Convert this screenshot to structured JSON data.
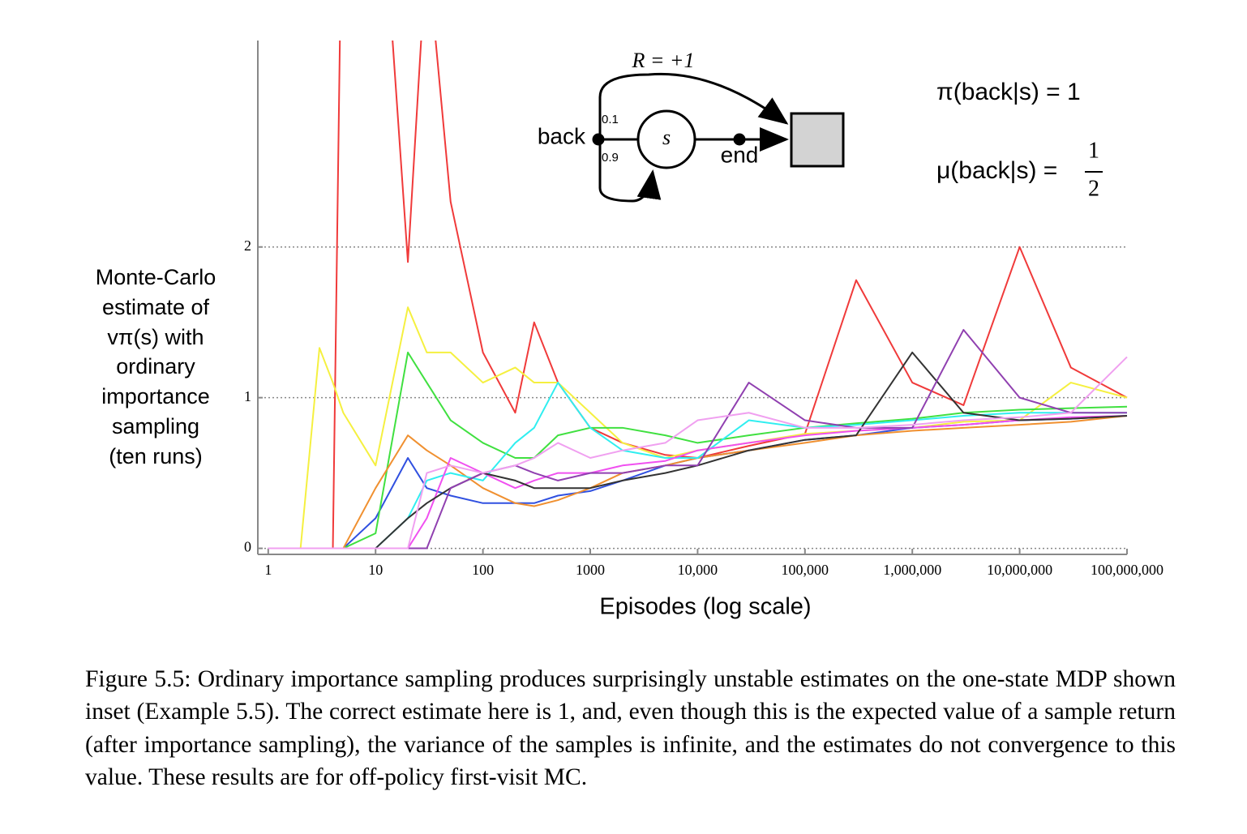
{
  "chart_data": {
    "type": "line",
    "xscale": "log",
    "grid": true,
    "ylabel": [
      "Monte-Carlo",
      "estimate of",
      "vπ(s) with",
      "ordinary",
      "importance",
      "sampling",
      "(ten runs)"
    ],
    "xlabel": "Episodes (log scale)",
    "xlim": [
      0.8,
      100000000
    ],
    "ylim": [
      -0.04,
      3.37
    ],
    "xticks": [
      1,
      10,
      100,
      1000,
      {
        "value": 10000,
        "label": "10,000"
      },
      {
        "value": 100000,
        "label": "100,000"
      },
      {
        "value": 1000000,
        "label": "1,000,000"
      },
      {
        "value": 10000000,
        "label": "10,000,000"
      },
      {
        "value": 100000000,
        "label": "100,000,000"
      }
    ],
    "yticks": [
      0,
      1,
      2
    ],
    "x": [
      1,
      2,
      3,
      4,
      5,
      10,
      20,
      30,
      50,
      100,
      200,
      300,
      500,
      1000,
      2000,
      5000,
      10000,
      30000,
      100000,
      300000,
      1000000,
      3000000,
      10000000,
      30000000,
      100000000
    ],
    "series": [
      {
        "color": "#f03a3a",
        "values": [
          0,
          0,
          0,
          0,
          5,
          5,
          1.9,
          4,
          2.3,
          1.3,
          0.9,
          1.5,
          1.1,
          0.8,
          0.7,
          0.62,
          0.6,
          0.68,
          0.76,
          1.78,
          1.1,
          0.95,
          2.0,
          1.2,
          1.0
        ]
      },
      {
        "color": "#f5f040",
        "values": [
          0,
          0,
          1.33,
          1.1,
          0.9,
          0.55,
          1.6,
          1.3,
          1.3,
          1.1,
          1.2,
          1.1,
          1.1,
          0.9,
          0.7,
          0.6,
          0.65,
          0.7,
          0.76,
          0.78,
          0.8,
          0.84,
          0.85,
          1.1,
          1.0
        ]
      },
      {
        "color": "#3050e0",
        "values": [
          0,
          0,
          0,
          0,
          0,
          0.2,
          0.6,
          0.4,
          0.35,
          0.3,
          0.3,
          0.3,
          0.35,
          0.38,
          0.45,
          0.55,
          0.6,
          0.65,
          0.72,
          0.75,
          0.8,
          0.82,
          0.85,
          0.86,
          0.88
        ]
      },
      {
        "color": "#40e040",
        "values": [
          0,
          0,
          0,
          0,
          0,
          0.1,
          1.3,
          1.1,
          0.85,
          0.7,
          0.6,
          0.6,
          0.75,
          0.8,
          0.8,
          0.75,
          0.7,
          0.75,
          0.8,
          0.83,
          0.86,
          0.9,
          0.92,
          0.93,
          0.94
        ]
      },
      {
        "color": "#f09030",
        "values": [
          0,
          0,
          0,
          0,
          0,
          0.4,
          0.75,
          0.65,
          0.55,
          0.4,
          0.3,
          0.28,
          0.32,
          0.4,
          0.5,
          0.55,
          0.6,
          0.65,
          0.7,
          0.75,
          0.78,
          0.8,
          0.82,
          0.84,
          0.88
        ]
      },
      {
        "color": "#30eef0",
        "values": [
          0,
          0,
          0,
          0,
          0,
          0,
          0.2,
          0.45,
          0.5,
          0.45,
          0.7,
          0.8,
          1.1,
          0.8,
          0.65,
          0.6,
          0.6,
          0.85,
          0.8,
          0.82,
          0.85,
          0.88,
          0.9,
          0.9,
          0.9
        ]
      },
      {
        "color": "#f050f0",
        "values": [
          0,
          0,
          0,
          0,
          0,
          0,
          0,
          0.2,
          0.6,
          0.5,
          0.4,
          0.45,
          0.5,
          0.5,
          0.55,
          0.58,
          0.65,
          0.7,
          0.75,
          0.78,
          0.8,
          0.82,
          0.85,
          0.87,
          0.88
        ]
      },
      {
        "color": "#333333",
        "values": [
          0,
          0,
          0,
          0,
          0,
          0,
          0.2,
          0.3,
          0.4,
          0.5,
          0.45,
          0.4,
          0.4,
          0.4,
          0.45,
          0.5,
          0.55,
          0.65,
          0.72,
          0.75,
          1.3,
          0.9,
          0.85,
          0.86,
          0.88
        ]
      },
      {
        "color": "#9040b0",
        "values": [
          0,
          0,
          0,
          0,
          0,
          0,
          0,
          0,
          0.4,
          0.5,
          0.55,
          0.5,
          0.45,
          0.5,
          0.5,
          0.55,
          0.55,
          1.1,
          0.85,
          0.8,
          0.8,
          1.45,
          1.0,
          0.9,
          0.9
        ]
      },
      {
        "color": "#f0a0f0",
        "values": [
          0,
          0,
          0,
          0,
          0,
          0,
          0,
          0.5,
          0.55,
          0.5,
          0.55,
          0.6,
          0.7,
          0.6,
          0.65,
          0.7,
          0.85,
          0.9,
          0.8,
          0.8,
          0.82,
          0.85,
          0.87,
          0.9,
          1.27
        ]
      }
    ],
    "inset": {
      "reward": "R = +1",
      "p_back": "0.1",
      "back": "back",
      "p_loop": "0.9",
      "state": "s",
      "end": "end",
      "pi": "π(back|s) = 1",
      "mu": "μ(back|s) =",
      "mu_num": "1",
      "mu_den": "2"
    }
  },
  "caption": "Figure 5.5: Ordinary importance sampling produces surprisingly unstable estimates on the one-state MDP shown inset (Example 5.5). The correct estimate here is 1, and, even though this is the expected value of a sample return (after importance sampling), the variance of the samples is infinite, and the estimates do not convergence to this value. These results are for off-policy first-visit MC."
}
